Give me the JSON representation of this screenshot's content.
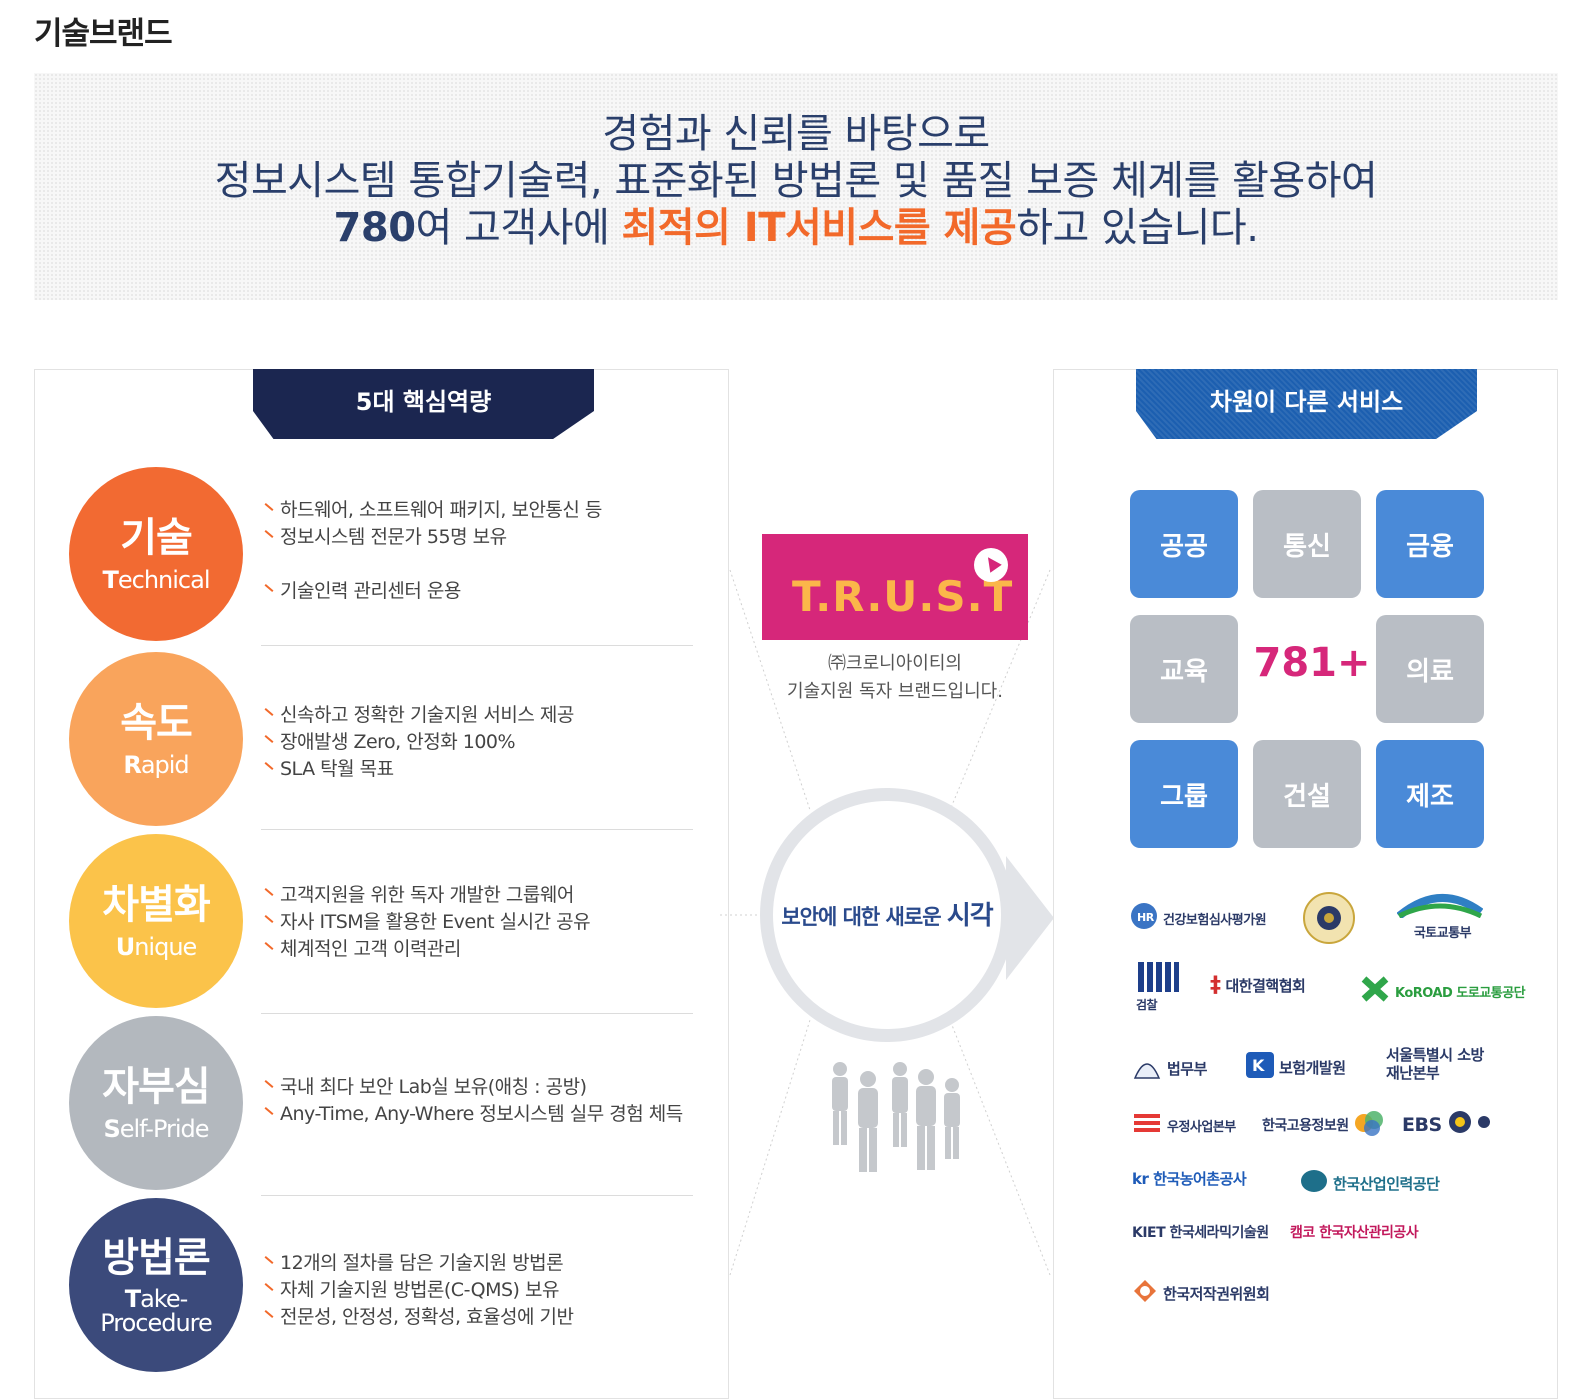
{
  "page_title": "기술브랜드",
  "intro": {
    "line1": "경험과 신뢰를 바탕으로",
    "line2": "정보시스템 통합기술력, 표준화된 방법론 및 품질 보증 체계를 활용하여",
    "line3_number": "780",
    "line3_pre": "여 고객사에 ",
    "line3_highlight": "최적의 IT서비스를 제공",
    "line3_post": "하고 있습니다."
  },
  "left_banner": "5대 핵심역량",
  "competencies": [
    {
      "ko": "기술",
      "en_cap": "T",
      "en_rest": "echnical",
      "color": "#f26a32",
      "items": [
        "하드웨어, 소프트웨어 패키지, 보안통신 등",
        "정보시스템 전문가 55명 보유",
        "기술인력 관리센터 운용"
      ]
    },
    {
      "ko": "속도",
      "en_cap": "R",
      "en_rest": "apid",
      "color": "#f9a45c",
      "items": [
        "신속하고 정확한 기술지원 서비스 제공",
        "장애발생 Zero, 안정화 100%",
        "SLA 탁월 목표"
      ]
    },
    {
      "ko": "차별화",
      "en_cap": "U",
      "en_rest": "nique",
      "color": "#fbc34a",
      "items": [
        "고객지원을 위한 독자 개발한 그룹웨어",
        "자사 ITSM을 활용한 Event 실시간 공유",
        "체계적인 고객 이력관리"
      ]
    },
    {
      "ko": "자부심",
      "en_cap": "S",
      "en_rest": "elf-Pride",
      "color": "#b3b8be",
      "items": [
        "국내 최다 보안 Lab실 보유(애칭 : 공방)",
        "Any-Time, Any-Where 정보시스템 실무 경험 체득"
      ]
    },
    {
      "ko": "방법론",
      "en_cap": "T",
      "en_rest": "ake-",
      "en_line2": "Procedure",
      "color": "#3b4a7b",
      "items": [
        "12개의 절차를 담은 기술지원 방법론",
        "자체 기술지원 방법론(C-QMS) 보유",
        "전문성, 안정성, 정확성, 효율성에 기반"
      ]
    }
  ],
  "center": {
    "trust": "T.R.U.S.T",
    "trust_desc1": "㈜크로니아이티의",
    "trust_desc2": "기술지원 독자 브랜드입니다.",
    "ring_text_small": "보안에 대한 새로운 ",
    "ring_text_big": "시각"
  },
  "right_banner": "차원이 다른 서비스",
  "tiles": [
    {
      "label": "공공",
      "style": "blue"
    },
    {
      "label": "통신",
      "style": "gray"
    },
    {
      "label": "금융",
      "style": "blue"
    },
    {
      "label": "교육",
      "style": "gray"
    },
    {
      "label": "의료",
      "style": "gray"
    },
    {
      "label": "그룹",
      "style": "blue"
    },
    {
      "label": "건설",
      "style": "gray"
    },
    {
      "label": "제조",
      "style": "blue"
    }
  ],
  "client_count": "781+",
  "client_logos": [
    "건강보험심사평가원",
    "경찰청 엠블럼",
    "국토교통부",
    "검찰",
    "대한결핵협회",
    "KoROAD 도로교통공단",
    "법무부",
    "보험개발원",
    "서울특별시 소방재난본부",
    "우정사업본부",
    "한국고용정보원",
    "EBS",
    "kr 한국농어촌공사",
    "한국산업인력공단",
    "KIET 한국세라믹기술원",
    "캠코 한국자산관리공사",
    "한국저작권위원회"
  ],
  "colors": {
    "navy": "#1b2650",
    "blue": "#1c5fb0",
    "orange": "#f2692a",
    "pink": "#d6277a"
  }
}
